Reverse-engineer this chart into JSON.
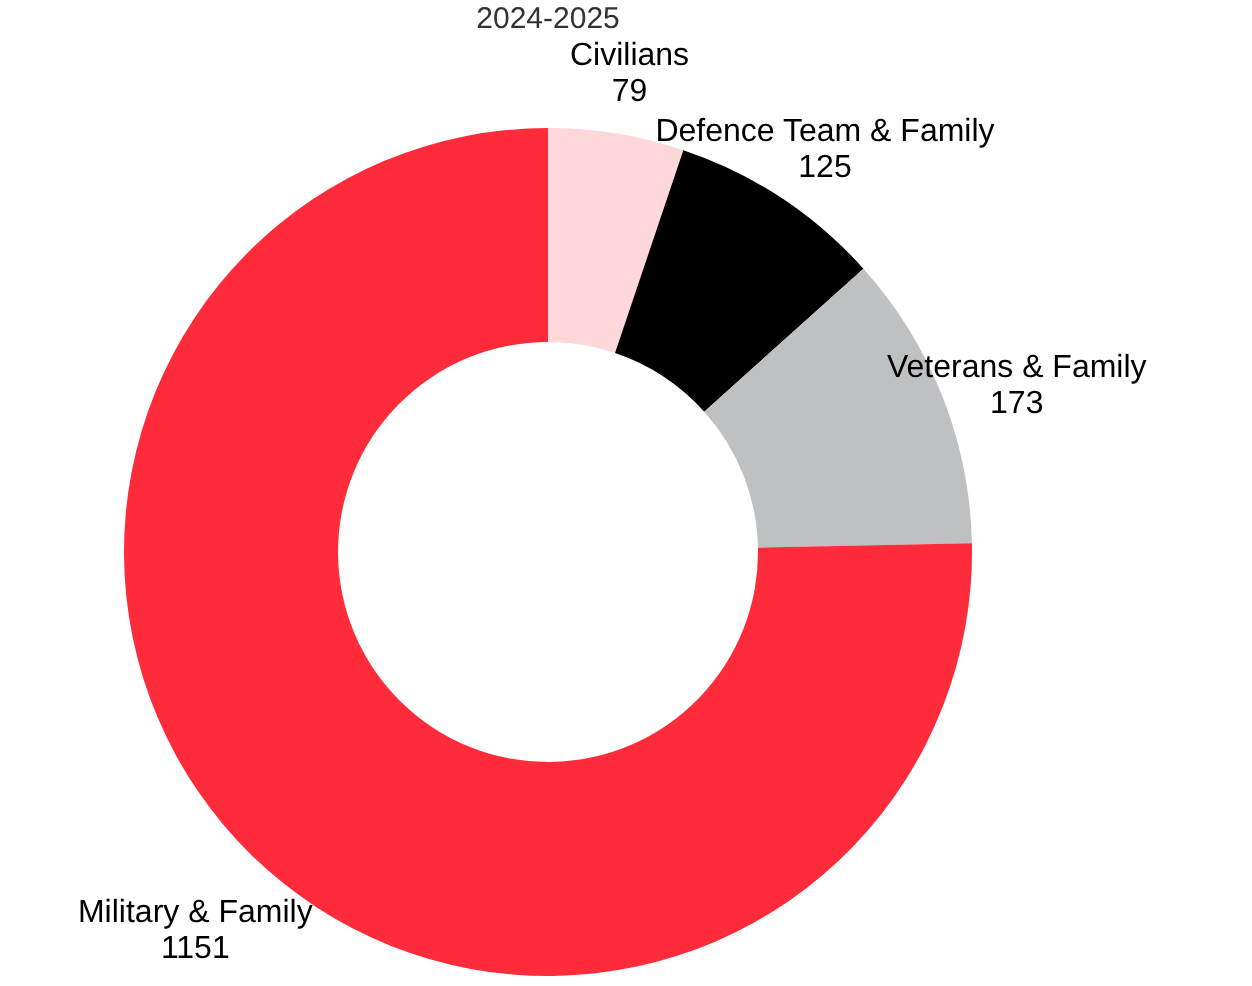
{
  "chart_data": {
    "type": "donut",
    "title": "2024-2025",
    "categories": [
      "Civilians",
      "Defence Team & Family",
      "Veterans & Family",
      "Military & Family"
    ],
    "values": [
      79,
      125,
      173,
      1151
    ],
    "colors": [
      "#fed7d9",
      "#000000",
      "#bfc0c2",
      "#fe2b3a"
    ],
    "data_labels": true,
    "legend": false
  }
}
